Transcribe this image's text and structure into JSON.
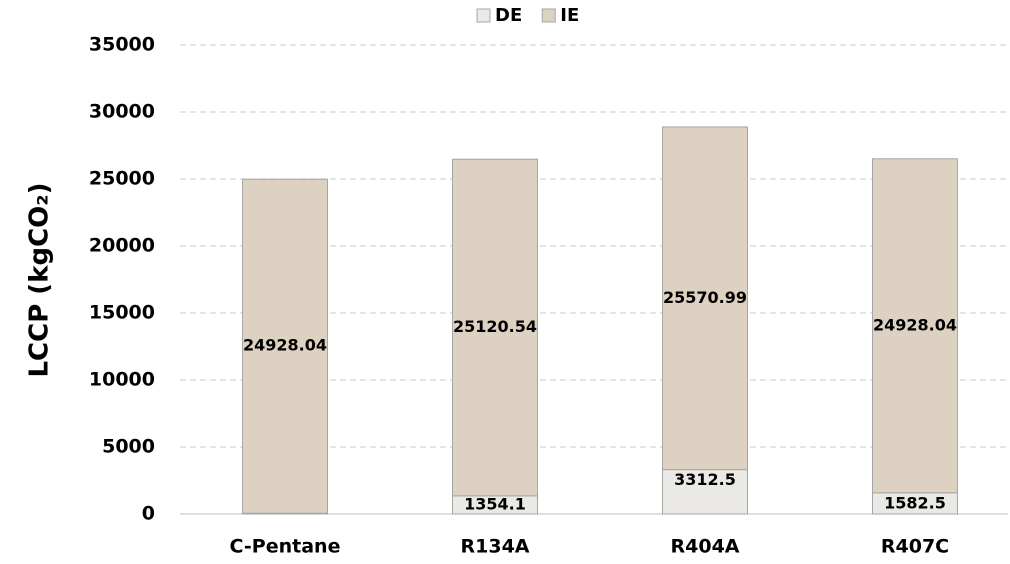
{
  "chart_data": {
    "type": "stacked_bar",
    "y_label": "LCCP (kgCO₂)",
    "categories": [
      "C-Pentane",
      "R134A",
      "R404A",
      "R407C"
    ],
    "series": [
      {
        "name": "DE",
        "color": "#ebe9e5",
        "values": [
          57.5,
          1354.1,
          3312.5,
          1582.5
        ]
      },
      {
        "name": "IE",
        "color": "#ddd1c1",
        "values": [
          24928.04,
          25120.54,
          25570.99,
          24928.04
        ]
      }
    ],
    "ylim": [
      0,
      35000
    ],
    "yticks": [
      0,
      5000,
      10000,
      15000,
      20000,
      25000,
      30000,
      35000
    ],
    "grid": true,
    "legend": "top"
  }
}
